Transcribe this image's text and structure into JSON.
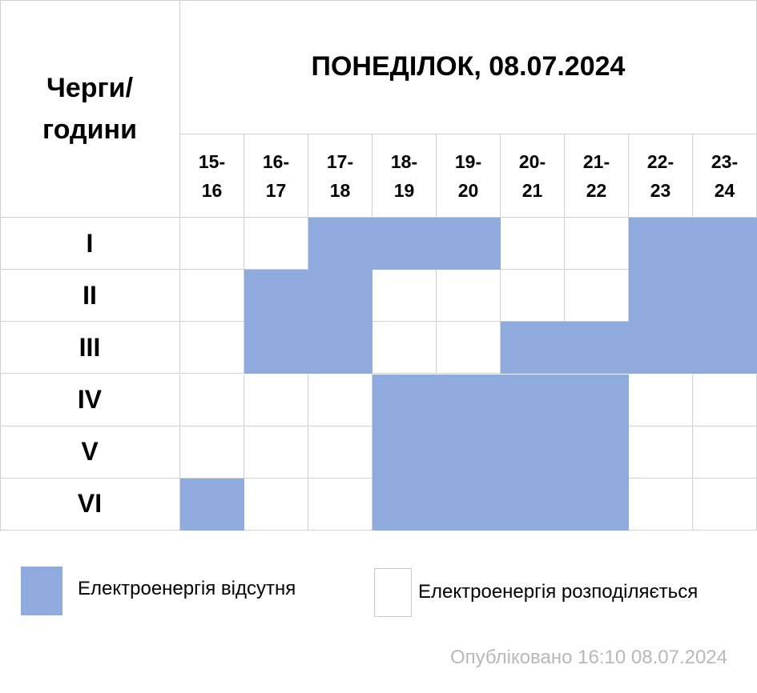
{
  "header": {
    "corner": [
      "Черги/",
      "години"
    ],
    "title": "ПОНЕДІЛОК, 08.07.2024"
  },
  "hours": [
    [
      "15-",
      "16"
    ],
    [
      "16-",
      "17"
    ],
    [
      "17-",
      "18"
    ],
    [
      "18-",
      "19"
    ],
    [
      "19-",
      "20"
    ],
    [
      "20-",
      "21"
    ],
    [
      "21-",
      "22"
    ],
    [
      "22-",
      "23"
    ],
    [
      "23-",
      "24"
    ]
  ],
  "off_color": "#8faadc",
  "rows": [
    {
      "label": "I",
      "off": [
        false,
        false,
        true,
        true,
        true,
        false,
        false,
        true,
        true
      ]
    },
    {
      "label": "II",
      "off": [
        false,
        true,
        true,
        false,
        false,
        false,
        false,
        true,
        true
      ]
    },
    {
      "label": "III",
      "off": [
        false,
        true,
        true,
        false,
        false,
        true,
        true,
        true,
        true
      ]
    },
    {
      "label": "IV",
      "off": [
        false,
        false,
        false,
        true,
        true,
        true,
        true,
        false,
        false
      ]
    },
    {
      "label": "V",
      "off": [
        false,
        false,
        false,
        true,
        true,
        true,
        true,
        false,
        false
      ]
    },
    {
      "label": "VI",
      "off": [
        true,
        false,
        false,
        true,
        true,
        true,
        true,
        false,
        false
      ]
    }
  ],
  "legend": {
    "off": "Електроенергія відсутня",
    "on": "Електроенергія розподіляється"
  },
  "footer": "Опубліковано 16:10 08.07.2024"
}
